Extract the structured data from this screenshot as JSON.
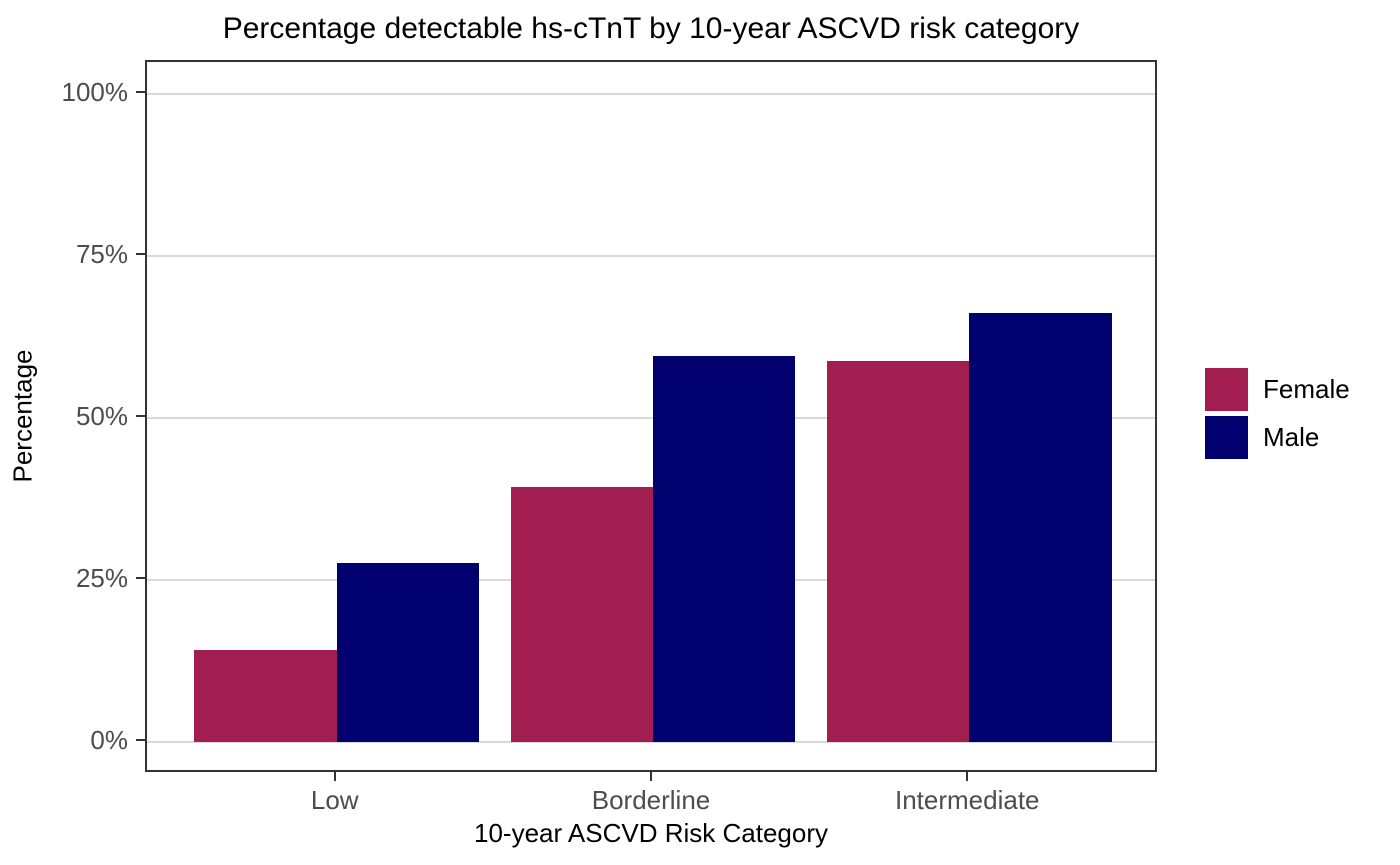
{
  "chart_data": {
    "type": "bar",
    "title": "Percentage detectable hs-cTnT by 10-year ASCVD risk category",
    "xlabel": "10-year ASCVD Risk Category",
    "ylabel": "Percentage",
    "categories": [
      "Low",
      "Borderline",
      "Intermediate"
    ],
    "series": [
      {
        "name": "Female",
        "color": "#A21D50",
        "values": [
          14.2,
          39.3,
          58.8
        ]
      },
      {
        "name": "Male",
        "color": "#00006E",
        "values": [
          27.6,
          59.6,
          66.2
        ]
      }
    ],
    "y_ticks": [
      {
        "label": "0%",
        "value": 0
      },
      {
        "label": "25%",
        "value": 25
      },
      {
        "label": "50%",
        "value": 50
      },
      {
        "label": "75%",
        "value": 75
      },
      {
        "label": "100%",
        "value": 100
      }
    ],
    "ylim": [
      0,
      100
    ],
    "grid": "major-horizontal-only",
    "legend_position": "right",
    "bar_layout": "grouped-dodge"
  },
  "colors": {
    "background": "#FFFFFF",
    "panel_border": "#333333",
    "gridline": "#D9D9D9",
    "tick_mark": "#333333",
    "tick_label": "#4D4D4D",
    "title_text": "#000000"
  }
}
